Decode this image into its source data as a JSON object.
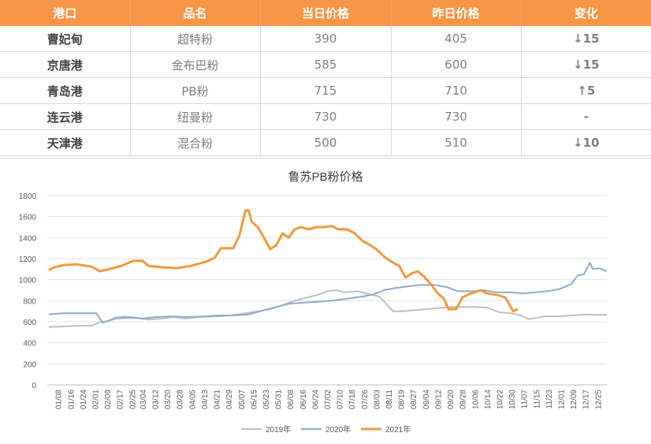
{
  "table": {
    "headers": [
      "港口",
      "品名",
      "当日价格",
      "昨日价格",
      "变化"
    ],
    "rows": [
      {
        "port": "曹妃甸",
        "product": "超特粉",
        "today": "390",
        "yesterday": "405",
        "arrow": "↓",
        "change": "15",
        "dir": "down"
      },
      {
        "port": "京唐港",
        "product": "金布巴粉",
        "today": "585",
        "yesterday": "600",
        "arrow": "↓",
        "change": "15",
        "dir": "down"
      },
      {
        "port": "青岛港",
        "product": "PB粉",
        "today": "715",
        "yesterday": "710",
        "arrow": "↑",
        "change": "5",
        "dir": "up"
      },
      {
        "port": "连云港",
        "product": "纽曼粉",
        "today": "730",
        "yesterday": "730",
        "arrow": "",
        "change": "-",
        "dir": "flat"
      },
      {
        "port": "天津港",
        "product": "混合粉",
        "today": "500",
        "yesterday": "510",
        "arrow": "↓",
        "change": "10",
        "dir": "down"
      }
    ],
    "colors": {
      "header_bg": "#F79646",
      "down": "#00A04A",
      "up": "#E60012"
    }
  },
  "chart_data": {
    "type": "line",
    "title": "鲁苏PB粉价格",
    "xlabel": "",
    "ylabel": "",
    "ylim": [
      0,
      1800
    ],
    "yticks": [
      0,
      200,
      400,
      600,
      800,
      1000,
      1200,
      1400,
      1600,
      1800
    ],
    "xticks": [
      "01/08",
      "01/16",
      "01/24",
      "02/01",
      "02/09",
      "02/17",
      "02/25",
      "03/04",
      "03/12",
      "03/20",
      "03/28",
      "04/05",
      "04/13",
      "04/21",
      "04/29",
      "05/07",
      "05/15",
      "05/23",
      "05/31",
      "06/08",
      "06/16",
      "06/24",
      "07/02",
      "07/10",
      "07/18",
      "07/26",
      "08/03",
      "08/11",
      "08/19",
      "08/27",
      "09/04",
      "09/12",
      "09/20",
      "09/28",
      "10/06",
      "10/14",
      "10/22",
      "10/30",
      "11/07",
      "11/15",
      "11/23",
      "12/01",
      "12/09",
      "12/17",
      "12/25"
    ],
    "grid": true,
    "legend_position": "bottom",
    "series": [
      {
        "name": "2019年",
        "color": "#BFBFBF",
        "width": 2,
        "points": [
          [
            "01/02",
            550
          ],
          [
            "01/10",
            555
          ],
          [
            "01/20",
            560
          ],
          [
            "01/30",
            565
          ],
          [
            "02/05",
            600
          ],
          [
            "02/10",
            605
          ],
          [
            "02/14",
            640
          ],
          [
            "02/20",
            650
          ],
          [
            "02/28",
            640
          ],
          [
            "03/08",
            620
          ],
          [
            "03/16",
            630
          ],
          [
            "03/24",
            645
          ],
          [
            "04/01",
            630
          ],
          [
            "04/10",
            645
          ],
          [
            "04/20",
            650
          ],
          [
            "04/30",
            660
          ],
          [
            "05/10",
            680
          ],
          [
            "05/18",
            700
          ],
          [
            "05/26",
            720
          ],
          [
            "06/03",
            760
          ],
          [
            "06/11",
            800
          ],
          [
            "06/19",
            830
          ],
          [
            "06/27",
            860
          ],
          [
            "07/02",
            890
          ],
          [
            "07/08",
            900
          ],
          [
            "07/14",
            880
          ],
          [
            "07/22",
            890
          ],
          [
            "07/30",
            860
          ],
          [
            "08/05",
            840
          ],
          [
            "08/10",
            760
          ],
          [
            "08/14",
            700
          ],
          [
            "08/20",
            700
          ],
          [
            "08/28",
            710
          ],
          [
            "09/05",
            720
          ],
          [
            "09/12",
            730
          ],
          [
            "09/20",
            740
          ],
          [
            "09/28",
            740
          ],
          [
            "10/06",
            740
          ],
          [
            "10/14",
            735
          ],
          [
            "10/22",
            690
          ],
          [
            "10/30",
            680
          ],
          [
            "11/05",
            660
          ],
          [
            "11/10",
            625
          ],
          [
            "11/20",
            650
          ],
          [
            "11/30",
            650
          ],
          [
            "12/08",
            660
          ],
          [
            "12/16",
            670
          ],
          [
            "12/24",
            665
          ],
          [
            "12/31",
            665
          ]
        ]
      },
      {
        "name": "2020年",
        "color": "#8EA9D0",
        "width": 2,
        "points": [
          [
            "01/02",
            670
          ],
          [
            "01/10",
            680
          ],
          [
            "01/20",
            680
          ],
          [
            "02/02",
            680
          ],
          [
            "02/06",
            590
          ],
          [
            "02/14",
            630
          ],
          [
            "02/24",
            640
          ],
          [
            "03/04",
            630
          ],
          [
            "03/12",
            645
          ],
          [
            "03/22",
            650
          ],
          [
            "04/01",
            645
          ],
          [
            "04/12",
            650
          ],
          [
            "04/22",
            660
          ],
          [
            "05/02",
            660
          ],
          [
            "05/12",
            670
          ],
          [
            "05/22",
            710
          ],
          [
            "05/30",
            740
          ],
          [
            "06/07",
            770
          ],
          [
            "06/15",
            780
          ],
          [
            "06/25",
            790
          ],
          [
            "07/05",
            800
          ],
          [
            "07/15",
            820
          ],
          [
            "07/25",
            840
          ],
          [
            "08/01",
            860
          ],
          [
            "08/08",
            900
          ],
          [
            "08/15",
            920
          ],
          [
            "08/25",
            940
          ],
          [
            "09/01",
            950
          ],
          [
            "09/10",
            950
          ],
          [
            "09/18",
            930
          ],
          [
            "09/25",
            890
          ],
          [
            "10/05",
            890
          ],
          [
            "10/12",
            900
          ],
          [
            "10/20",
            880
          ],
          [
            "10/30",
            880
          ],
          [
            "11/06",
            870
          ],
          [
            "11/14",
            880
          ],
          [
            "11/22",
            890
          ],
          [
            "11/30",
            910
          ],
          [
            "12/08",
            960
          ],
          [
            "12/12",
            1040
          ],
          [
            "12/16",
            1050
          ],
          [
            "12/20",
            1160
          ],
          [
            "12/22",
            1100
          ],
          [
            "12/26",
            1110
          ],
          [
            "12/31",
            1080
          ]
        ]
      },
      {
        "name": "2021年",
        "color": "#F39A3A",
        "width": 3,
        "points": [
          [
            "01/02",
            1090
          ],
          [
            "01/06",
            1120
          ],
          [
            "01/12",
            1140
          ],
          [
            "01/20",
            1145
          ],
          [
            "01/30",
            1125
          ],
          [
            "02/04",
            1080
          ],
          [
            "02/10",
            1100
          ],
          [
            "02/18",
            1130
          ],
          [
            "02/26",
            1180
          ],
          [
            "03/04",
            1180
          ],
          [
            "03/08",
            1130
          ],
          [
            "03/16",
            1120
          ],
          [
            "03/26",
            1110
          ],
          [
            "04/04",
            1130
          ],
          [
            "04/14",
            1170
          ],
          [
            "04/20",
            1210
          ],
          [
            "04/24",
            1300
          ],
          [
            "05/02",
            1300
          ],
          [
            "05/06",
            1420
          ],
          [
            "05/10",
            1660
          ],
          [
            "05/12",
            1660
          ],
          [
            "05/14",
            1550
          ],
          [
            "05/18",
            1500
          ],
          [
            "05/22",
            1400
          ],
          [
            "05/26",
            1290
          ],
          [
            "05/30",
            1330
          ],
          [
            "06/03",
            1440
          ],
          [
            "06/07",
            1400
          ],
          [
            "06/11",
            1480
          ],
          [
            "06/15",
            1500
          ],
          [
            "06/20",
            1480
          ],
          [
            "06/25",
            1500
          ],
          [
            "06/30",
            1500
          ],
          [
            "07/05",
            1510
          ],
          [
            "07/09",
            1480
          ],
          [
            "07/15",
            1480
          ],
          [
            "07/20",
            1440
          ],
          [
            "07/25",
            1370
          ],
          [
            "07/30",
            1330
          ],
          [
            "08/03",
            1290
          ],
          [
            "08/08",
            1220
          ],
          [
            "08/13",
            1170
          ],
          [
            "08/18",
            1130
          ],
          [
            "08/22",
            1020
          ],
          [
            "08/26",
            1060
          ],
          [
            "08/30",
            1080
          ],
          [
            "09/03",
            1030
          ],
          [
            "09/08",
            950
          ],
          [
            "09/12",
            870
          ],
          [
            "09/16",
            820
          ],
          [
            "09/19",
            720
          ],
          [
            "09/24",
            720
          ],
          [
            "09/28",
            830
          ],
          [
            "10/02",
            860
          ],
          [
            "10/06",
            880
          ],
          [
            "10/10",
            900
          ],
          [
            "10/14",
            870
          ],
          [
            "10/18",
            860
          ],
          [
            "10/22",
            850
          ],
          [
            "10/26",
            830
          ],
          [
            "10/28",
            780
          ],
          [
            "10/31",
            700
          ],
          [
            "11/03",
            720
          ]
        ]
      }
    ]
  }
}
